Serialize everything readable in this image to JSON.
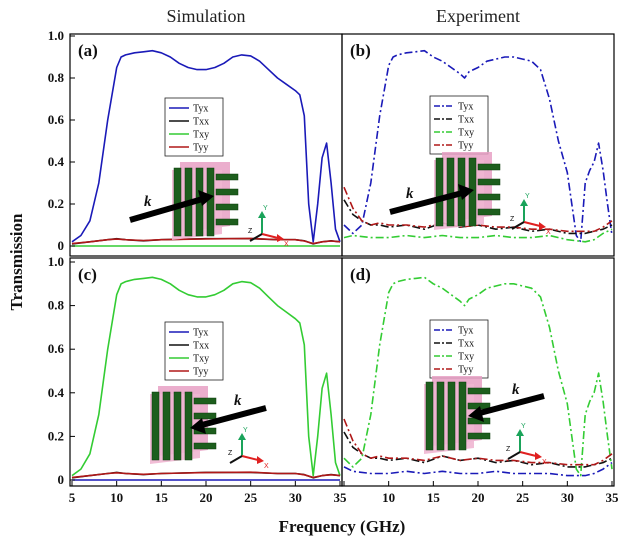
{
  "figure": {
    "column_titles": [
      "Simulation",
      "Experiment"
    ],
    "xlabel": "Frequency (GHz)",
    "ylabel": "Transmission",
    "x_ticks": [
      "5",
      "10",
      "15",
      "20",
      "25",
      "30",
      "35"
    ],
    "y_ticks_top": [
      "0",
      "0.2",
      "0.4",
      "0.6",
      "0.8",
      "1.0"
    ],
    "y_ticks_bottom": [
      "0",
      "0.2",
      "0.4",
      "0.6",
      "0.8",
      "1.0"
    ],
    "k_label": "k",
    "axis_letters": {
      "y": "Y",
      "z": "Z",
      "x": "X"
    }
  },
  "colors": {
    "Tyx": "#1a1ab8",
    "Txx": "#111111",
    "Txy": "#33cc33",
    "Tyy": "#b01818",
    "ring_green": "#1d5e1d",
    "block_pink": "#e8a0c4"
  },
  "chart_data": [
    {
      "panel": "(a)",
      "title": "Simulation",
      "type": "line",
      "linestyle": "solid",
      "xlim": [
        5,
        35
      ],
      "ylim": [
        0,
        1.0
      ],
      "grid": false,
      "legend_position": "center",
      "series": [
        {
          "name": "Tyx",
          "x": [
            5,
            6,
            7,
            8,
            9,
            10,
            10.5,
            11,
            12,
            13,
            14,
            15,
            16,
            17,
            18,
            19,
            20,
            21,
            22,
            23,
            24,
            25,
            26,
            27,
            28,
            29,
            30,
            30.5,
            31,
            31.5,
            32,
            32.5,
            33,
            33.5,
            34,
            34.5,
            35
          ],
          "y": [
            0.02,
            0.05,
            0.12,
            0.3,
            0.6,
            0.85,
            0.9,
            0.91,
            0.92,
            0.925,
            0.93,
            0.92,
            0.9,
            0.87,
            0.85,
            0.84,
            0.84,
            0.85,
            0.87,
            0.9,
            0.91,
            0.905,
            0.88,
            0.84,
            0.8,
            0.77,
            0.74,
            0.72,
            0.62,
            0.2,
            0.02,
            0.2,
            0.42,
            0.49,
            0.3,
            0.08,
            0.02
          ]
        },
        {
          "name": "Txx",
          "x": [
            5,
            7,
            9,
            10,
            11,
            13,
            15,
            20,
            25,
            28,
            30,
            31,
            32,
            33,
            34,
            35
          ],
          "y": [
            0.01,
            0.02,
            0.03,
            0.035,
            0.03,
            0.025,
            0.03,
            0.035,
            0.035,
            0.03,
            0.03,
            0.025,
            0.01,
            0.02,
            0.025,
            0.02
          ]
        },
        {
          "name": "Txy",
          "x": [
            5,
            35
          ],
          "y": [
            0.0,
            0.0
          ]
        },
        {
          "name": "Tyy",
          "x": [
            5,
            7,
            9,
            10,
            11,
            13,
            15,
            20,
            25,
            28,
            30,
            31,
            32,
            33,
            34,
            35
          ],
          "y": [
            0.012,
            0.02,
            0.03,
            0.033,
            0.03,
            0.026,
            0.03,
            0.034,
            0.036,
            0.03,
            0.03,
            0.024,
            0.012,
            0.02,
            0.024,
            0.02
          ]
        }
      ]
    },
    {
      "panel": "(b)",
      "title": "Experiment",
      "type": "line",
      "linestyle": "dash-dot",
      "xlim": [
        5,
        35
      ],
      "ylim": [
        0,
        1.0
      ],
      "grid": false,
      "legend_position": "center",
      "series": [
        {
          "name": "Tyx",
          "x": [
            5,
            6,
            7,
            8,
            9,
            10,
            10.5,
            11,
            12,
            13,
            14,
            15,
            16,
            17,
            18,
            18.5,
            19,
            20,
            21,
            22,
            23,
            24,
            25,
            26,
            27,
            28,
            29,
            30,
            30.5,
            31,
            31.5,
            32,
            32.5,
            33,
            33.5,
            34,
            34.5,
            35
          ],
          "y": [
            0.1,
            0.06,
            0.1,
            0.3,
            0.62,
            0.86,
            0.9,
            0.91,
            0.92,
            0.925,
            0.93,
            0.9,
            0.88,
            0.85,
            0.82,
            0.8,
            0.83,
            0.85,
            0.88,
            0.89,
            0.9,
            0.9,
            0.89,
            0.88,
            0.84,
            0.7,
            0.5,
            0.35,
            0.2,
            0.05,
            0.02,
            0.3,
            0.36,
            0.4,
            0.49,
            0.36,
            0.2,
            0.05
          ]
        },
        {
          "name": "Txx",
          "x": [
            5,
            6,
            7,
            8,
            9,
            10,
            12,
            14,
            16,
            18,
            20,
            22,
            24,
            26,
            28,
            30,
            32,
            33,
            34,
            35
          ],
          "y": [
            0.22,
            0.15,
            0.12,
            0.1,
            0.1,
            0.09,
            0.1,
            0.08,
            0.11,
            0.09,
            0.1,
            0.08,
            0.09,
            0.07,
            0.08,
            0.06,
            0.06,
            0.07,
            0.08,
            0.1
          ]
        },
        {
          "name": "Txy",
          "x": [
            5,
            6,
            8,
            10,
            12,
            14,
            16,
            18,
            20,
            22,
            24,
            26,
            28,
            30,
            32,
            33,
            34,
            35
          ],
          "y": [
            0.04,
            0.05,
            0.04,
            0.04,
            0.05,
            0.04,
            0.05,
            0.04,
            0.04,
            0.05,
            0.04,
            0.04,
            0.05,
            0.03,
            0.02,
            0.03,
            0.06,
            0.08
          ]
        },
        {
          "name": "Tyy",
          "x": [
            5,
            6,
            7,
            8,
            9,
            10,
            12,
            14,
            16,
            18,
            20,
            22,
            24,
            26,
            28,
            30,
            32,
            33,
            34,
            35
          ],
          "y": [
            0.28,
            0.18,
            0.12,
            0.1,
            0.11,
            0.1,
            0.1,
            0.09,
            0.11,
            0.09,
            0.1,
            0.09,
            0.09,
            0.08,
            0.08,
            0.07,
            0.07,
            0.07,
            0.09,
            0.12
          ]
        }
      ]
    },
    {
      "panel": "(c)",
      "title": "Simulation",
      "type": "line",
      "linestyle": "solid",
      "xlim": [
        5,
        35
      ],
      "ylim": [
        0,
        1.0
      ],
      "grid": false,
      "legend_position": "center",
      "series": [
        {
          "name": "Tyx",
          "x": [
            5,
            35
          ],
          "y": [
            0.0,
            0.0
          ]
        },
        {
          "name": "Txx",
          "x": [
            5,
            7,
            9,
            10,
            11,
            13,
            15,
            20,
            25,
            28,
            30,
            31,
            32,
            33,
            34,
            35
          ],
          "y": [
            0.01,
            0.02,
            0.03,
            0.035,
            0.03,
            0.025,
            0.03,
            0.035,
            0.035,
            0.03,
            0.03,
            0.025,
            0.01,
            0.02,
            0.025,
            0.02
          ]
        },
        {
          "name": "Txy",
          "x": [
            5,
            6,
            7,
            8,
            9,
            10,
            10.5,
            11,
            12,
            13,
            14,
            15,
            16,
            17,
            18,
            19,
            20,
            21,
            22,
            23,
            24,
            25,
            26,
            27,
            28,
            29,
            30,
            30.5,
            31,
            31.5,
            32,
            32.5,
            33,
            33.5,
            34,
            34.5,
            35
          ],
          "y": [
            0.02,
            0.05,
            0.12,
            0.3,
            0.6,
            0.85,
            0.9,
            0.91,
            0.92,
            0.925,
            0.93,
            0.92,
            0.9,
            0.87,
            0.85,
            0.84,
            0.84,
            0.85,
            0.87,
            0.9,
            0.91,
            0.905,
            0.88,
            0.84,
            0.8,
            0.77,
            0.74,
            0.72,
            0.62,
            0.2,
            0.02,
            0.2,
            0.42,
            0.49,
            0.3,
            0.08,
            0.02
          ]
        },
        {
          "name": "Tyy",
          "x": [
            5,
            7,
            9,
            10,
            11,
            13,
            15,
            20,
            25,
            28,
            30,
            31,
            32,
            33,
            34,
            35
          ],
          "y": [
            0.012,
            0.02,
            0.03,
            0.033,
            0.03,
            0.026,
            0.03,
            0.034,
            0.036,
            0.03,
            0.03,
            0.024,
            0.012,
            0.02,
            0.024,
            0.02
          ]
        }
      ]
    },
    {
      "panel": "(d)",
      "title": "Experiment",
      "type": "line",
      "linestyle": "dash-dot",
      "xlim": [
        5,
        35
      ],
      "ylim": [
        0,
        1.0
      ],
      "grid": false,
      "legend_position": "center",
      "series": [
        {
          "name": "Tyx",
          "x": [
            5,
            6,
            8,
            10,
            12,
            14,
            16,
            18,
            20,
            22,
            24,
            26,
            28,
            30,
            32,
            33,
            34,
            35
          ],
          "y": [
            0.06,
            0.04,
            0.03,
            0.03,
            0.04,
            0.03,
            0.04,
            0.03,
            0.03,
            0.04,
            0.03,
            0.03,
            0.03,
            0.02,
            0.02,
            0.03,
            0.05,
            0.08
          ]
        },
        {
          "name": "Txx",
          "x": [
            5,
            6,
            7,
            8,
            9,
            10,
            12,
            14,
            16,
            18,
            20,
            22,
            24,
            26,
            28,
            30,
            32,
            33,
            34,
            35
          ],
          "y": [
            0.22,
            0.15,
            0.12,
            0.1,
            0.1,
            0.09,
            0.1,
            0.08,
            0.11,
            0.09,
            0.1,
            0.08,
            0.09,
            0.07,
            0.08,
            0.06,
            0.06,
            0.07,
            0.08,
            0.1
          ]
        },
        {
          "name": "Txy",
          "x": [
            5,
            6,
            7,
            8,
            9,
            10,
            10.5,
            11,
            12,
            13,
            14,
            15,
            16,
            17,
            18,
            18.5,
            19,
            20,
            21,
            22,
            23,
            24,
            25,
            26,
            27,
            28,
            29,
            30,
            30.5,
            31,
            31.5,
            32,
            32.5,
            33,
            33.5,
            34,
            34.5,
            35
          ],
          "y": [
            0.1,
            0.06,
            0.1,
            0.3,
            0.62,
            0.86,
            0.9,
            0.91,
            0.92,
            0.925,
            0.93,
            0.9,
            0.88,
            0.85,
            0.82,
            0.8,
            0.83,
            0.85,
            0.88,
            0.89,
            0.9,
            0.9,
            0.89,
            0.88,
            0.84,
            0.7,
            0.5,
            0.35,
            0.2,
            0.05,
            0.02,
            0.3,
            0.36,
            0.4,
            0.49,
            0.36,
            0.2,
            0.05
          ]
        },
        {
          "name": "Tyy",
          "x": [
            5,
            6,
            7,
            8,
            9,
            10,
            12,
            14,
            16,
            18,
            20,
            22,
            24,
            26,
            28,
            30,
            32,
            33,
            34,
            35
          ],
          "y": [
            0.28,
            0.18,
            0.12,
            0.1,
            0.11,
            0.1,
            0.1,
            0.09,
            0.11,
            0.09,
            0.1,
            0.09,
            0.09,
            0.08,
            0.08,
            0.07,
            0.07,
            0.07,
            0.09,
            0.12
          ]
        }
      ]
    }
  ]
}
